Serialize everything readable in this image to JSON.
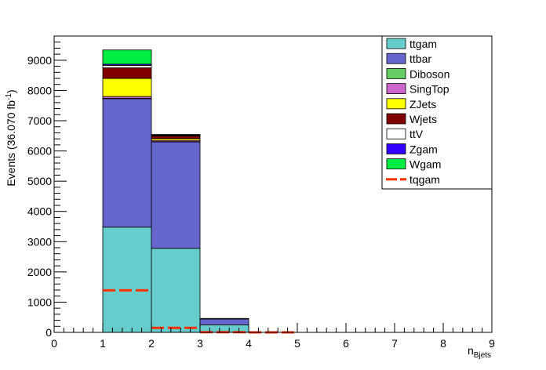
{
  "chart_data": {
    "type": "bar",
    "stacked": true,
    "xlabel": "n",
    "xlabel_subscript": "Bjets",
    "ylabel": "Events (36.070 fb",
    "ylabel_superscript": "-1",
    "ylabel_close": ")",
    "xlim": [
      0,
      9
    ],
    "ylim": [
      0,
      9800
    ],
    "x_ticks": [
      "0",
      "1",
      "2",
      "3",
      "4",
      "5",
      "6",
      "7",
      "8",
      "9"
    ],
    "y_ticks": [
      "0",
      "1000",
      "2000",
      "3000",
      "4000",
      "5000",
      "6000",
      "7000",
      "8000",
      "9000"
    ],
    "bins": [
      [
        1,
        2
      ],
      [
        2,
        3
      ],
      [
        3,
        4
      ]
    ],
    "series": [
      {
        "name": "ttgam",
        "color": "#66cccc",
        "values": [
          3480,
          2780,
          250
        ]
      },
      {
        "name": "ttbar",
        "color": "#6666cc",
        "values": [
          4250,
          3520,
          190
        ]
      },
      {
        "name": "Diboson",
        "color": "#66cc66",
        "values": [
          10,
          8,
          1
        ]
      },
      {
        "name": "SingTop",
        "color": "#cc66cc",
        "values": [
          60,
          40,
          3
        ]
      },
      {
        "name": "ZJets",
        "color": "#ffff00",
        "values": [
          600,
          60,
          4
        ]
      },
      {
        "name": "Wjets",
        "color": "#800000",
        "values": [
          350,
          90,
          6
        ]
      },
      {
        "name": "ttV",
        "color": "#ffffff",
        "values": [
          80,
          20,
          2
        ]
      },
      {
        "name": "Zgam",
        "color": "#3300ff",
        "values": [
          40,
          12,
          1
        ]
      },
      {
        "name": "Wgam",
        "color": "#00ee44",
        "values": [
          470,
          15,
          3
        ]
      }
    ],
    "overlay": {
      "name": "tqgam",
      "color": "#ff3300",
      "style": "dashed",
      "bins": [
        [
          1,
          2
        ],
        [
          2,
          3
        ],
        [
          3,
          4
        ],
        [
          4,
          5
        ]
      ],
      "values": [
        1390,
        150,
        5,
        0
      ]
    },
    "legend_position": "top-right",
    "grid": false
  }
}
